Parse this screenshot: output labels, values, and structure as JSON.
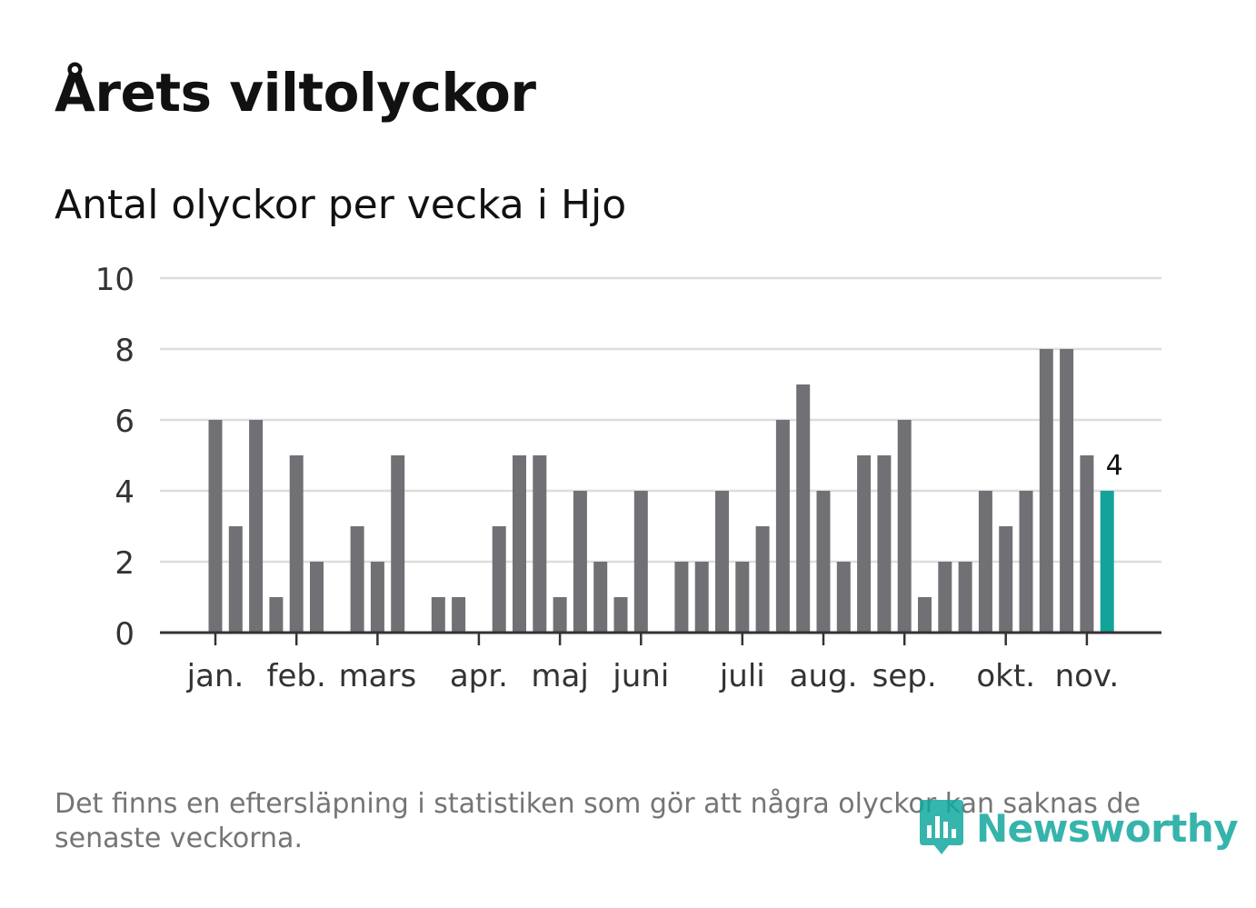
{
  "title": "Årets viltolyckor",
  "subtitle": "Antal olyckor per vecka i Hjo",
  "footnote": "Det finns en eftersläpning i statistiken som gör att några olyckor kan saknas de senaste veckorna.",
  "brand": "Newsworthy",
  "colors": {
    "bar": "#717075",
    "highlight": "#13a39a",
    "grid": "#dddddd",
    "axis": "#333333",
    "brand": "#13a89e"
  },
  "chart_data": {
    "type": "bar",
    "title": "Årets viltolyckor",
    "subtitle": "Antal olyckor per vecka i Hjo",
    "xlabel": "",
    "ylabel": "",
    "ylim": [
      0,
      10
    ],
    "yticks": [
      "0",
      "2",
      "4",
      "6",
      "8",
      "10"
    ],
    "grid": true,
    "weeks": [
      1,
      2,
      3,
      4,
      5,
      6,
      7,
      8,
      9,
      10,
      11,
      12,
      13,
      14,
      15,
      16,
      17,
      18,
      19,
      20,
      21,
      22,
      23,
      24,
      25,
      26,
      27,
      28,
      29,
      30,
      31,
      32,
      33,
      34,
      35,
      36,
      37,
      38,
      39,
      40,
      41,
      42,
      43,
      44,
      45
    ],
    "values": [
      6,
      3,
      6,
      1,
      5,
      2,
      0,
      3,
      2,
      5,
      0,
      1,
      1,
      0,
      3,
      5,
      5,
      1,
      4,
      2,
      1,
      4,
      0,
      2,
      2,
      4,
      2,
      3,
      6,
      7,
      4,
      2,
      5,
      5,
      6,
      1,
      2,
      2,
      4,
      3,
      4,
      8,
      8,
      5,
      4
    ],
    "highlight_index": 44,
    "highlight_label": "4",
    "month_labels": [
      "jan.",
      "feb.",
      "mars",
      "apr.",
      "maj",
      "juni",
      "juli",
      "aug.",
      "sep.",
      "okt.",
      "nov."
    ],
    "month_label_week": [
      1,
      5,
      9,
      14,
      18,
      22,
      27,
      31,
      35,
      40,
      44
    ]
  }
}
